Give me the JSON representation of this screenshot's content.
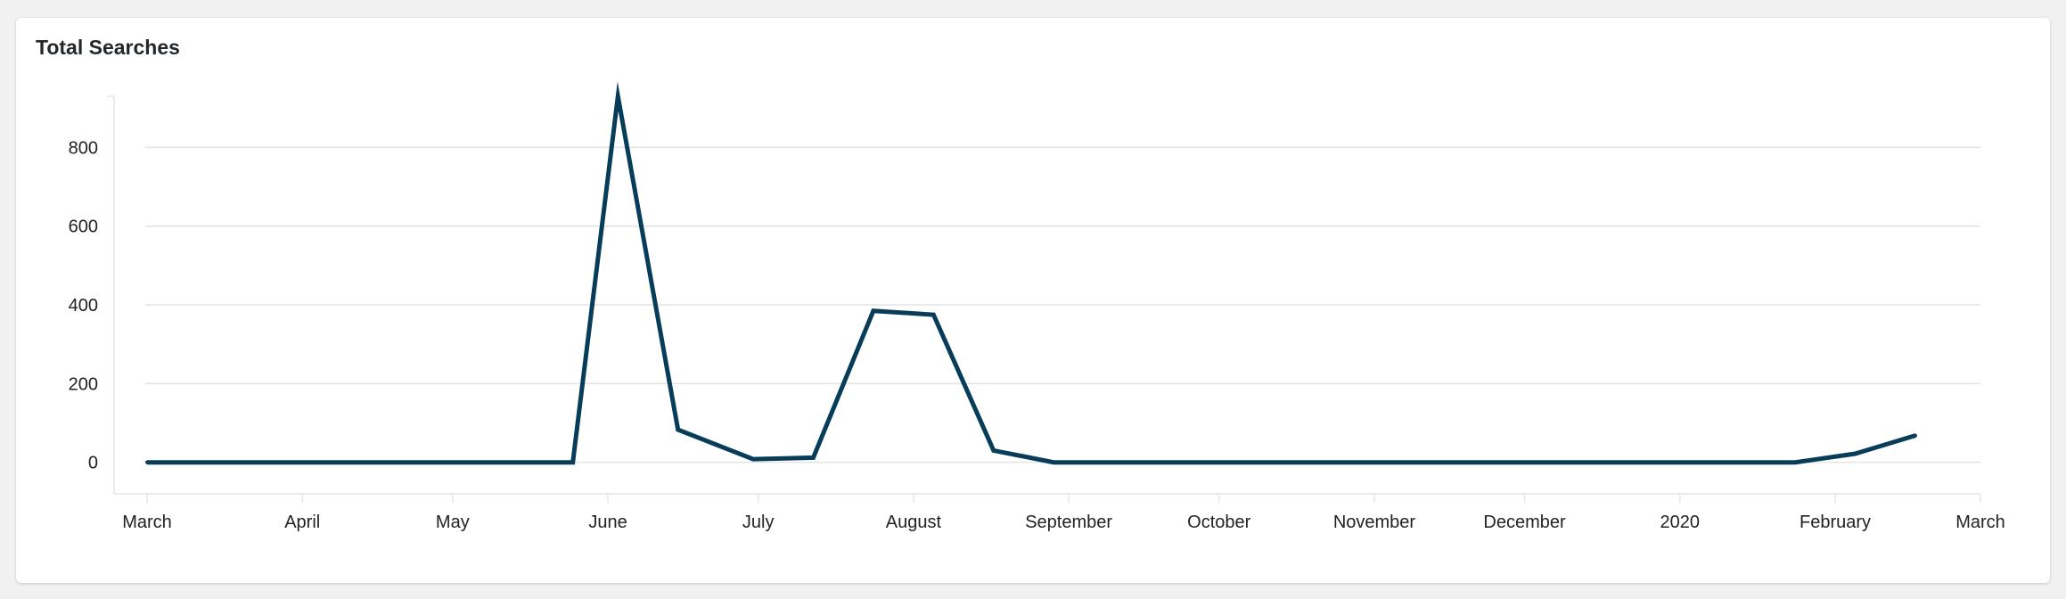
{
  "card": {
    "title": "Total Searches"
  },
  "chart_data": {
    "type": "line",
    "title": "Total Searches",
    "xlabel": "",
    "ylabel": "",
    "x_axis": {
      "kind": "date",
      "range": [
        "2019-03-01",
        "2020-03-01"
      ],
      "tick_labels": [
        {
          "date": "2019-03-01",
          "label": "March"
        },
        {
          "date": "2019-04-01",
          "label": "April"
        },
        {
          "date": "2019-05-01",
          "label": "May"
        },
        {
          "date": "2019-06-01",
          "label": "June"
        },
        {
          "date": "2019-07-01",
          "label": "July"
        },
        {
          "date": "2019-08-01",
          "label": "August"
        },
        {
          "date": "2019-09-01",
          "label": "September"
        },
        {
          "date": "2019-10-01",
          "label": "October"
        },
        {
          "date": "2019-11-01",
          "label": "November"
        },
        {
          "date": "2019-12-01",
          "label": "December"
        },
        {
          "date": "2020-01-01",
          "label": "2020"
        },
        {
          "date": "2020-02-01",
          "label": "February"
        },
        {
          "date": "2020-03-01",
          "label": "March"
        }
      ]
    },
    "y_axis": {
      "range": [
        -80,
        930
      ],
      "ticks": [
        0,
        200,
        400,
        600,
        800
      ]
    },
    "grid": true,
    "legend": "none",
    "series": [
      {
        "color": "#083d5a",
        "points": [
          {
            "x": "2019-03-01",
            "y": 0
          },
          {
            "x": "2019-03-15",
            "y": 0
          },
          {
            "x": "2019-04-15",
            "y": 0
          },
          {
            "x": "2019-05-15",
            "y": 0
          },
          {
            "x": "2019-05-25",
            "y": 0
          },
          {
            "x": "2019-06-03",
            "y": 930
          },
          {
            "x": "2019-06-15",
            "y": 83
          },
          {
            "x": "2019-06-30",
            "y": 8
          },
          {
            "x": "2019-07-12",
            "y": 12
          },
          {
            "x": "2019-07-24",
            "y": 385
          },
          {
            "x": "2019-08-05",
            "y": 375
          },
          {
            "x": "2019-08-17",
            "y": 30
          },
          {
            "x": "2019-08-29",
            "y": 0
          },
          {
            "x": "2019-09-15",
            "y": 0
          },
          {
            "x": "2019-10-15",
            "y": 0
          },
          {
            "x": "2019-11-15",
            "y": 0
          },
          {
            "x": "2019-12-15",
            "y": 0
          },
          {
            "x": "2020-01-15",
            "y": 0
          },
          {
            "x": "2020-01-24",
            "y": 0
          },
          {
            "x": "2020-02-05",
            "y": 22
          },
          {
            "x": "2020-02-17",
            "y": 68
          }
        ]
      }
    ]
  }
}
